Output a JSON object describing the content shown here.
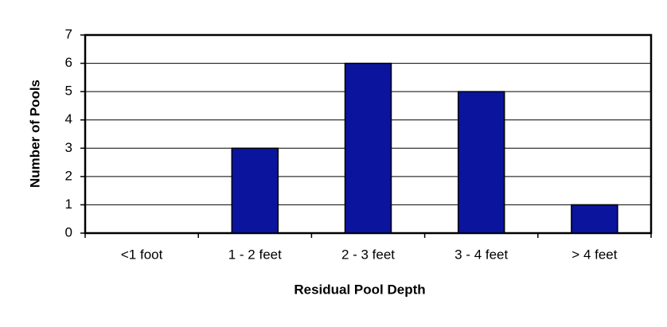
{
  "chart_data": {
    "type": "bar",
    "x_label": "Residual Pool Depth",
    "y_label": "Number of Pools",
    "categories": [
      "<1 foot",
      "1 - 2 feet",
      "2 - 3 feet",
      "3 - 4 feet",
      "> 4 feet"
    ],
    "values": [
      0,
      3,
      6,
      5,
      1
    ],
    "color": "#0a149c",
    "ylim": [
      0,
      7
    ],
    "yticks": [
      0,
      1,
      2,
      3,
      4,
      5,
      6,
      7
    ],
    "grid": true
  }
}
